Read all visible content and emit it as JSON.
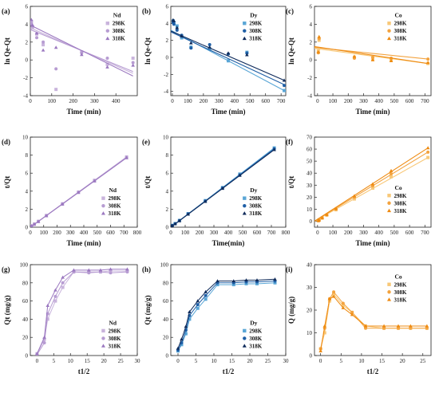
{
  "figure": {
    "panels": [
      {
        "id": "a",
        "label": "(a)",
        "legend_title": "Nd",
        "palette": "nd",
        "xlabel": "Time (min)",
        "ylabel": "ln Qe-Qt"
      },
      {
        "id": "b",
        "label": "(b)",
        "legend_title": "Dy",
        "palette": "dy",
        "xlabel": "Time (min)",
        "ylabel": "ln Qe-Qt"
      },
      {
        "id": "c",
        "label": "(c)",
        "legend_title": "Co",
        "palette": "co",
        "xlabel": "Time (min)",
        "ylabel": "ln Qe-Qt"
      },
      {
        "id": "d",
        "label": "(d)",
        "legend_title": "Nd",
        "palette": "nd",
        "xlabel": "Time (min)",
        "ylabel": "t/Qt"
      },
      {
        "id": "e",
        "label": "(e)",
        "legend_title": "Dy",
        "palette": "dy",
        "xlabel": "Time(min)",
        "ylabel": "t/Qt"
      },
      {
        "id": "f",
        "label": "(f)",
        "legend_title": "Co",
        "palette": "co",
        "xlabel": "Time (min)",
        "ylabel": "t/Qt"
      },
      {
        "id": "g",
        "label": "(g)",
        "legend_title": "Nd",
        "palette": "nd",
        "xlabel": "t1/2",
        "ylabel": "Qt (mg/g)"
      },
      {
        "id": "h",
        "label": "(h)",
        "legend_title": "Dy",
        "palette": "dy",
        "xlabel": "t1/2",
        "ylabel": "Qt (mg/g)"
      },
      {
        "id": "i",
        "label": "(i)",
        "legend_title": "Co",
        "palette": "co",
        "xlabel": "t1/2",
        "ylabel": "Q (mg/g)"
      }
    ],
    "legend_series": [
      "298K",
      "308K",
      "318K"
    ],
    "palettes": {
      "nd": [
        "#c9b4dc",
        "#b79cd2",
        "#9b78c0"
      ],
      "dy": [
        "#5aa6d6",
        "#1f5fa6",
        "#0f2b5b"
      ],
      "co": [
        "#f8c878",
        "#f3a33f",
        "#ee8a10"
      ]
    }
  },
  "chart_data": [
    {
      "panel": "a",
      "type": "scatter",
      "title": "",
      "xlabel": "Time (min)",
      "ylabel": "ln Qe-Qt",
      "xlim": [
        0,
        500
      ],
      "ylim": [
        -4,
        6
      ],
      "xticks": [
        0,
        100,
        200,
        300,
        400
      ],
      "yticks": [
        -4,
        -2,
        0,
        2,
        4,
        6
      ],
      "series": [
        {
          "name": "298K",
          "x": [
            5,
            10,
            30,
            60,
            120,
            240,
            360,
            480
          ],
          "y": [
            4.3,
            3.6,
            2.9,
            1.7,
            -3.3,
            0.9,
            -0.5,
            0.2
          ],
          "fit": [
            3.6,
            -1.5
          ]
        },
        {
          "name": "308K",
          "x": [
            5,
            10,
            30,
            60,
            120,
            240,
            360,
            480
          ],
          "y": [
            4.1,
            3.8,
            2.5,
            2.0,
            -1.0,
            0.8,
            0.2,
            -0.3
          ],
          "fit": [
            3.4,
            -1.3
          ]
        },
        {
          "name": "318K",
          "x": [
            5,
            10,
            30,
            60,
            120,
            240,
            360,
            480
          ],
          "y": [
            4.5,
            3.9,
            3.0,
            1.1,
            1.4,
            0.6,
            -0.8,
            -0.6
          ],
          "fit": [
            3.9,
            -1.8
          ]
        }
      ]
    },
    {
      "panel": "b",
      "type": "scatter",
      "title": "",
      "xlabel": "Time (min)",
      "ylabel": "ln Qe-Qt",
      "xlim": [
        -10,
        730
      ],
      "ylim": [
        -4.5,
        6
      ],
      "xticks": [
        0,
        100,
        200,
        300,
        400,
        500,
        600,
        700
      ],
      "yticks": [
        -4,
        -2,
        0,
        2,
        4,
        6
      ],
      "series": [
        {
          "name": "298K",
          "x": [
            5,
            10,
            30,
            60,
            120,
            240,
            360,
            480,
            720
          ],
          "y": [
            4.3,
            4.1,
            3.7,
            2.3,
            1.2,
            1.0,
            -0.4,
            0.6,
            -3.9
          ],
          "fit": [
            3.2,
            -3.9
          ]
        },
        {
          "name": "308K",
          "x": [
            5,
            10,
            30,
            60,
            120,
            240,
            360,
            480,
            720
          ],
          "y": [
            4.1,
            3.9,
            3.2,
            2.6,
            1.1,
            1.5,
            0.4,
            0.5,
            -3.3
          ],
          "fit": [
            3.0,
            -3.2
          ]
        },
        {
          "name": "318K",
          "x": [
            5,
            10,
            30,
            60,
            120,
            240,
            360,
            480,
            720
          ],
          "y": [
            4.4,
            4.3,
            3.5,
            2.5,
            1.7,
            1.2,
            0.5,
            0.3,
            -2.7
          ],
          "fit": [
            3.1,
            -2.7
          ]
        }
      ]
    },
    {
      "panel": "c",
      "type": "scatter",
      "title": "",
      "xlabel": "Time (min)",
      "ylabel": "ln Qe-Qt",
      "xlim": [
        -20,
        740
      ],
      "ylim": [
        -4,
        6
      ],
      "xticks": [
        0,
        100,
        200,
        300,
        400,
        500,
        600,
        700
      ],
      "yticks": [
        -4,
        -2,
        0,
        2,
        4,
        6
      ],
      "series": [
        {
          "name": "298K",
          "x": [
            5,
            10,
            240,
            360,
            480,
            720
          ],
          "y": [
            1.0,
            2.2,
            0.3,
            0.1,
            0.0,
            -0.4
          ],
          "fit": [
            1.3,
            -0.4
          ]
        },
        {
          "name": "308K",
          "x": [
            5,
            10,
            240,
            360,
            480,
            720
          ],
          "y": [
            0.8,
            2.4,
            0.2,
            0.3,
            0.2,
            0.1
          ],
          "fit": [
            1.4,
            0.1
          ]
        },
        {
          "name": "318K",
          "x": [
            5,
            10,
            240,
            360,
            480,
            720
          ],
          "y": [
            0.9,
            2.6,
            0.4,
            0.0,
            -0.1,
            -0.3
          ],
          "fit": [
            1.5,
            -0.4
          ]
        }
      ]
    },
    {
      "panel": "d",
      "type": "scatter",
      "title": "",
      "xlabel": "Time (min)",
      "ylabel": "t/Qt",
      "xlim": [
        0,
        800
      ],
      "ylim": [
        0,
        10
      ],
      "xticks": [
        0,
        100,
        200,
        300,
        400,
        500,
        600,
        700,
        800
      ],
      "yticks": [
        0,
        2,
        4,
        6,
        8,
        10
      ],
      "series": [
        {
          "name": "298K",
          "x": [
            5,
            10,
            30,
            60,
            120,
            240,
            360,
            480,
            720
          ],
          "y": [
            0.1,
            0.15,
            0.35,
            0.65,
            1.3,
            2.6,
            3.9,
            5.2,
            7.8
          ],
          "fit": [
            0.0,
            7.8
          ]
        },
        {
          "name": "308K",
          "x": [
            5,
            10,
            30,
            60,
            120,
            240,
            360,
            480,
            720
          ],
          "y": [
            0.1,
            0.14,
            0.33,
            0.64,
            1.28,
            2.58,
            3.88,
            5.18,
            7.75
          ],
          "fit": [
            0.0,
            7.75
          ]
        },
        {
          "name": "318K",
          "x": [
            5,
            10,
            30,
            60,
            120,
            240,
            360,
            480,
            720
          ],
          "y": [
            0.09,
            0.13,
            0.32,
            0.62,
            1.26,
            2.55,
            3.85,
            5.12,
            7.7
          ],
          "fit": [
            0.0,
            7.7
          ]
        }
      ]
    },
    {
      "panel": "e",
      "type": "scatter",
      "title": "",
      "xlabel": "Time(min)",
      "ylabel": "t/Qt",
      "xlim": [
        0,
        800
      ],
      "ylim": [
        0,
        10
      ],
      "xticks": [
        0,
        100,
        200,
        300,
        400,
        500,
        600,
        700,
        800
      ],
      "yticks": [
        0,
        2,
        4,
        6,
        8,
        10
      ],
      "series": [
        {
          "name": "298K",
          "x": [
            5,
            10,
            30,
            60,
            120,
            240,
            360,
            480,
            720
          ],
          "y": [
            0.15,
            0.2,
            0.4,
            0.75,
            1.5,
            2.95,
            4.4,
            5.9,
            8.8
          ],
          "fit": [
            0.0,
            8.8
          ]
        },
        {
          "name": "308K",
          "x": [
            5,
            10,
            30,
            60,
            120,
            240,
            360,
            480,
            720
          ],
          "y": [
            0.14,
            0.19,
            0.38,
            0.73,
            1.47,
            2.9,
            4.35,
            5.8,
            8.7
          ],
          "fit": [
            0.0,
            8.7
          ]
        },
        {
          "name": "318K",
          "x": [
            5,
            10,
            30,
            60,
            120,
            240,
            360,
            480,
            720
          ],
          "y": [
            0.13,
            0.18,
            0.37,
            0.71,
            1.44,
            2.85,
            4.3,
            5.75,
            8.6
          ],
          "fit": [
            0.0,
            8.6
          ]
        }
      ]
    },
    {
      "panel": "f",
      "type": "scatter",
      "title": "",
      "xlabel": "Time (min)",
      "ylabel": "t/Qt",
      "xlim": [
        -20,
        740
      ],
      "ylim": [
        -5,
        70
      ],
      "xticks": [
        0,
        100,
        200,
        300,
        400,
        500,
        600,
        700
      ],
      "yticks": [
        0,
        10,
        20,
        30,
        40,
        50,
        60,
        70
      ],
      "series": [
        {
          "name": "298K",
          "x": [
            5,
            10,
            30,
            60,
            120,
            240,
            360,
            480,
            720
          ],
          "y": [
            0.5,
            1.0,
            2.5,
            5.0,
            9.5,
            18.5,
            27.5,
            37.0,
            53.0
          ],
          "fit": [
            0.0,
            53.0
          ]
        },
        {
          "name": "308K",
          "x": [
            5,
            10,
            30,
            60,
            120,
            240,
            360,
            480,
            720
          ],
          "y": [
            0.4,
            0.9,
            2.7,
            5.3,
            10.0,
            20.0,
            29.5,
            39.5,
            57.5
          ],
          "fit": [
            0.0,
            57.5
          ]
        },
        {
          "name": "318K",
          "x": [
            5,
            10,
            30,
            60,
            120,
            240,
            360,
            480,
            720
          ],
          "y": [
            0.4,
            0.8,
            2.8,
            5.5,
            10.5,
            21.0,
            31.0,
            42.0,
            61.0
          ],
          "fit": [
            0.0,
            61.0
          ]
        }
      ]
    },
    {
      "panel": "g",
      "type": "line",
      "title": "",
      "xlabel": "t1/2",
      "ylabel": "Qt (mg/g)",
      "xlim": [
        -2,
        30
      ],
      "ylim": [
        0,
        100
      ],
      "xticks": [
        0,
        5,
        10,
        15,
        20,
        25,
        30
      ],
      "yticks": [
        0,
        20,
        40,
        60,
        80,
        100
      ],
      "series": [
        {
          "name": "298K",
          "x": [
            0,
            2.2,
            3.2,
            5.5,
            7.7,
            11,
            15.5,
            19,
            22,
            27
          ],
          "y": [
            2,
            18,
            40,
            60,
            75,
            92,
            92,
            92,
            93,
            93
          ]
        },
        {
          "name": "308K",
          "x": [
            0,
            2.2,
            3.2,
            5.5,
            7.7,
            11,
            15.5,
            19,
            22,
            27
          ],
          "y": [
            1,
            14,
            46,
            65,
            80,
            92,
            91,
            92,
            91,
            92
          ]
        },
        {
          "name": "318K",
          "x": [
            0,
            2.2,
            3.2,
            5.5,
            7.7,
            11,
            15.5,
            19,
            22,
            27
          ],
          "y": [
            2,
            20,
            55,
            72,
            86,
            94,
            94,
            94,
            95,
            95
          ]
        }
      ]
    },
    {
      "panel": "h",
      "type": "line",
      "title": "",
      "xlabel": "t1/2",
      "ylabel": "Qt (mg/g)",
      "xlim": [
        -2,
        30
      ],
      "ylim": [
        0,
        100
      ],
      "xticks": [
        0,
        5,
        10,
        15,
        20,
        25,
        30
      ],
      "yticks": [
        0,
        20,
        40,
        60,
        80,
        100
      ],
      "series": [
        {
          "name": "298K",
          "x": [
            0,
            1,
            2.2,
            3.2,
            5.5,
            7.7,
            11,
            15.5,
            19,
            22,
            27
          ],
          "y": [
            5,
            12,
            24,
            40,
            52,
            62,
            78,
            78,
            79,
            79,
            80
          ]
        },
        {
          "name": "308K",
          "x": [
            0,
            1,
            2.2,
            3.2,
            5.5,
            7.7,
            11,
            15.5,
            19,
            22,
            27
          ],
          "y": [
            6,
            14,
            28,
            44,
            56,
            66,
            80,
            80,
            81,
            81,
            82
          ]
        },
        {
          "name": "318K",
          "x": [
            0,
            1,
            2.2,
            3.2,
            5.5,
            7.7,
            11,
            15.5,
            19,
            22,
            27
          ],
          "y": [
            8,
            18,
            32,
            48,
            60,
            70,
            82,
            82,
            83,
            83,
            84
          ]
        }
      ]
    },
    {
      "panel": "i",
      "type": "line",
      "title": "",
      "xlabel": "t1/2",
      "ylabel": "Q (mg/g)",
      "xlim": [
        -1.5,
        27
      ],
      "ylim": [
        0,
        40
      ],
      "xticks": [
        0,
        5,
        10,
        15,
        20,
        25
      ],
      "yticks": [
        0,
        10,
        20,
        30,
        40
      ],
      "series": [
        {
          "name": "298K",
          "x": [
            0,
            1,
            2.2,
            3.2,
            5.5,
            7.7,
            11,
            15.5,
            19,
            22,
            26
          ],
          "y": [
            3,
            10,
            24,
            27,
            22,
            19,
            13,
            12,
            12,
            12,
            12
          ]
        },
        {
          "name": "308K",
          "x": [
            0,
            1,
            2.2,
            3.2,
            5.5,
            7.7,
            11,
            15.5,
            19,
            22,
            26
          ],
          "y": [
            3,
            12,
            25,
            28,
            23,
            19,
            12,
            12,
            12,
            12,
            12
          ]
        },
        {
          "name": "318K",
          "x": [
            0,
            1,
            2.2,
            3.2,
            5.5,
            7.7,
            11,
            15.5,
            19,
            22,
            26
          ],
          "y": [
            2,
            13,
            25,
            26,
            21,
            18,
            13,
            13,
            13,
            13,
            13
          ]
        }
      ]
    }
  ]
}
